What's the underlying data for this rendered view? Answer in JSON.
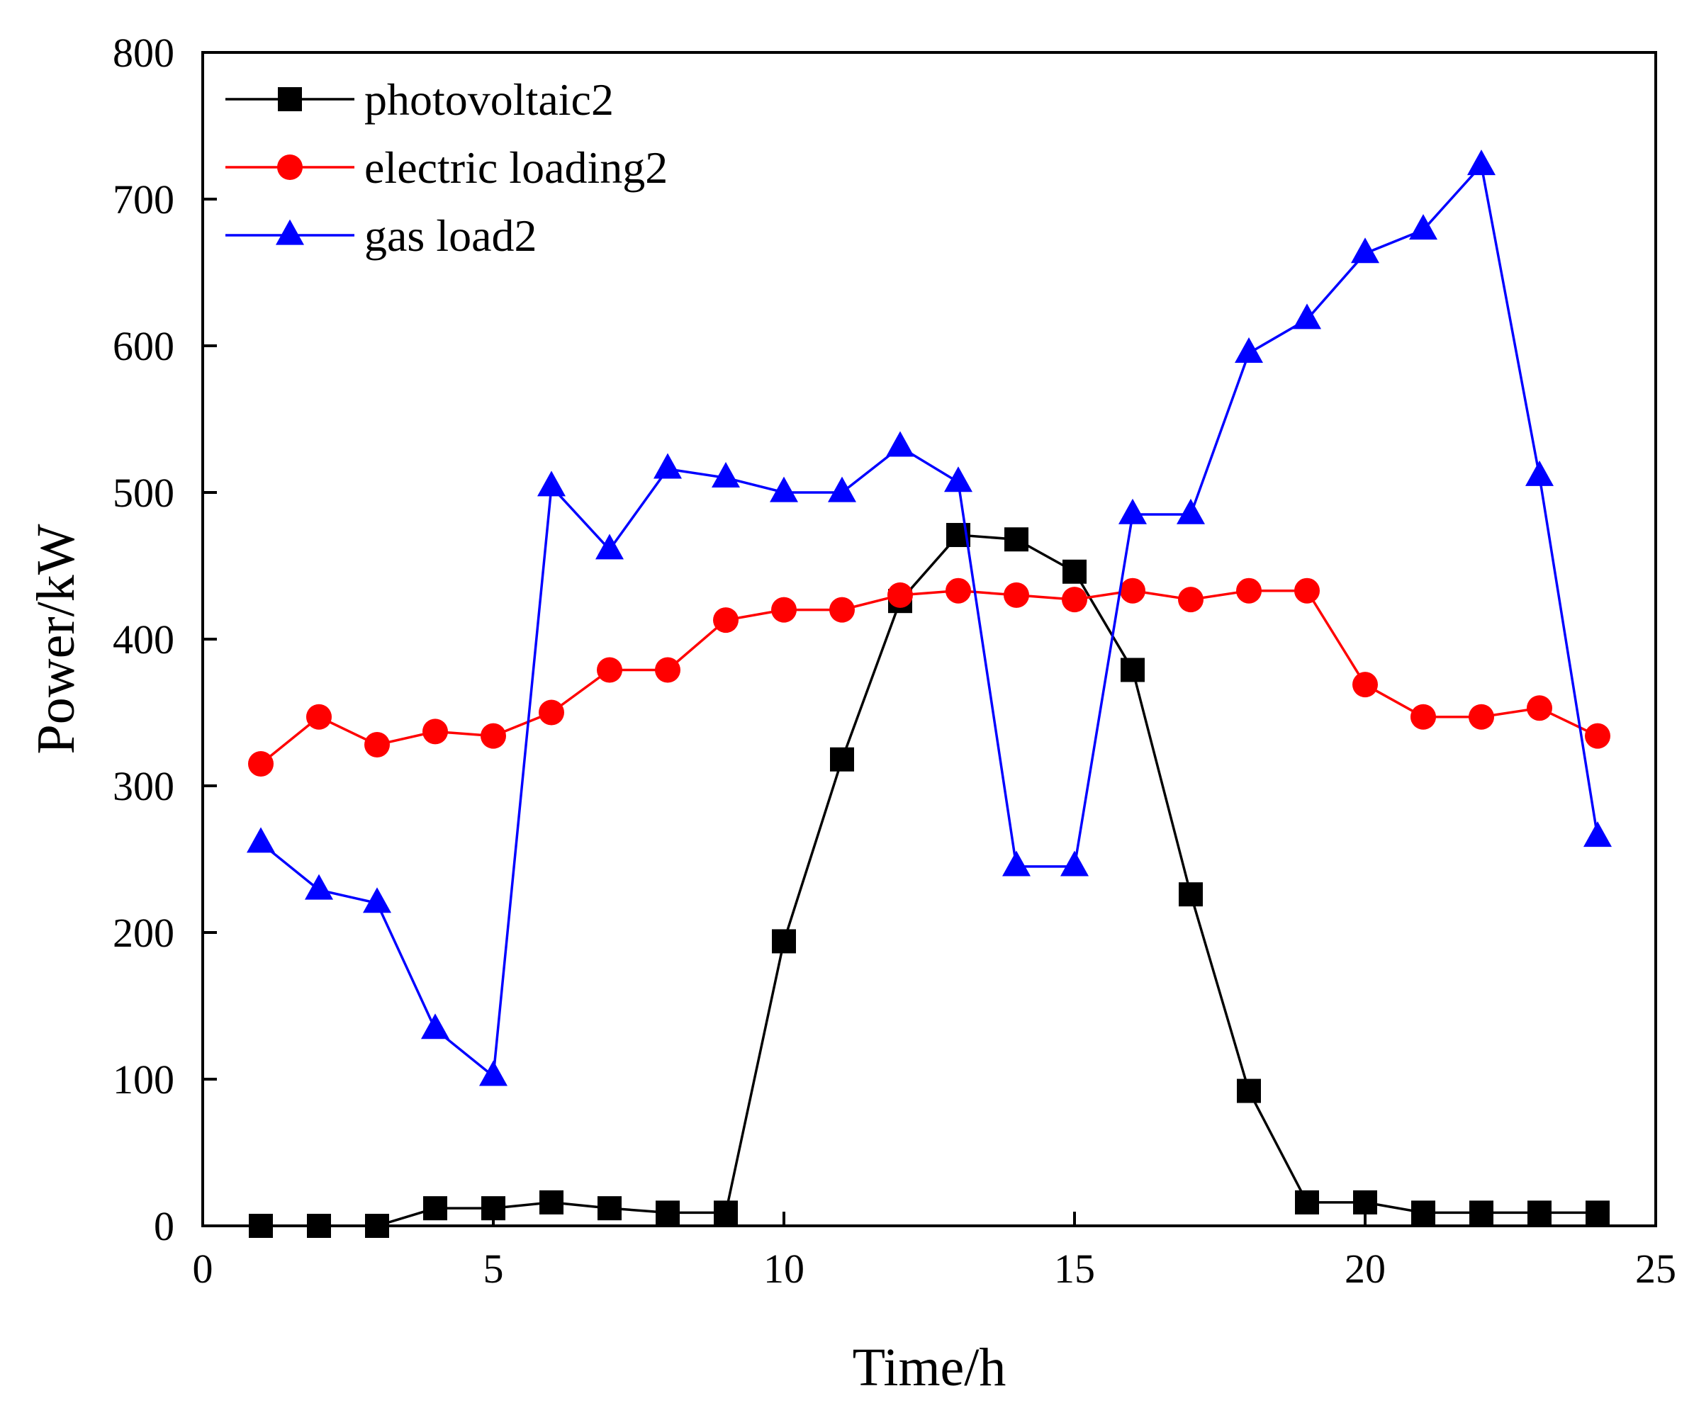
{
  "chart_data": {
    "type": "line",
    "title": "",
    "xlabel": "Time/h",
    "ylabel": "Power/kW",
    "xlim": [
      0,
      25
    ],
    "ylim": [
      0,
      800
    ],
    "xticks": [
      0,
      5,
      10,
      15,
      20,
      25
    ],
    "yticks": [
      0,
      100,
      200,
      300,
      400,
      500,
      600,
      700,
      800
    ],
    "grid": false,
    "legend_position": "top-left",
    "x": [
      1,
      2,
      3,
      4,
      5,
      6,
      7,
      8,
      9,
      10,
      11,
      12,
      13,
      14,
      15,
      16,
      17,
      18,
      19,
      20,
      21,
      22,
      23,
      24
    ],
    "series": [
      {
        "name": "photovoltaic2",
        "color": "#000000",
        "marker": "square",
        "values": [
          0,
          0,
          0,
          12,
          12,
          16,
          12,
          9,
          9,
          194,
          318,
          426,
          471,
          468,
          446,
          379,
          226,
          92,
          16,
          16,
          9,
          9,
          9,
          9
        ]
      },
      {
        "name": "electric loading2",
        "color": "#ff0000",
        "marker": "circle",
        "values": [
          315,
          347,
          328,
          337,
          334,
          350,
          379,
          379,
          413,
          420,
          420,
          430,
          433,
          430,
          427,
          433,
          427,
          433,
          433,
          369,
          347,
          347,
          353,
          334
        ]
      },
      {
        "name": "gas load2",
        "color": "#0000ff",
        "marker": "triangle",
        "values": [
          261,
          229,
          220,
          134,
          102,
          504,
          461,
          516,
          510,
          500,
          500,
          531,
          507,
          245,
          245,
          485,
          485,
          595,
          618,
          663,
          679,
          723,
          511,
          265
        ]
      }
    ]
  }
}
